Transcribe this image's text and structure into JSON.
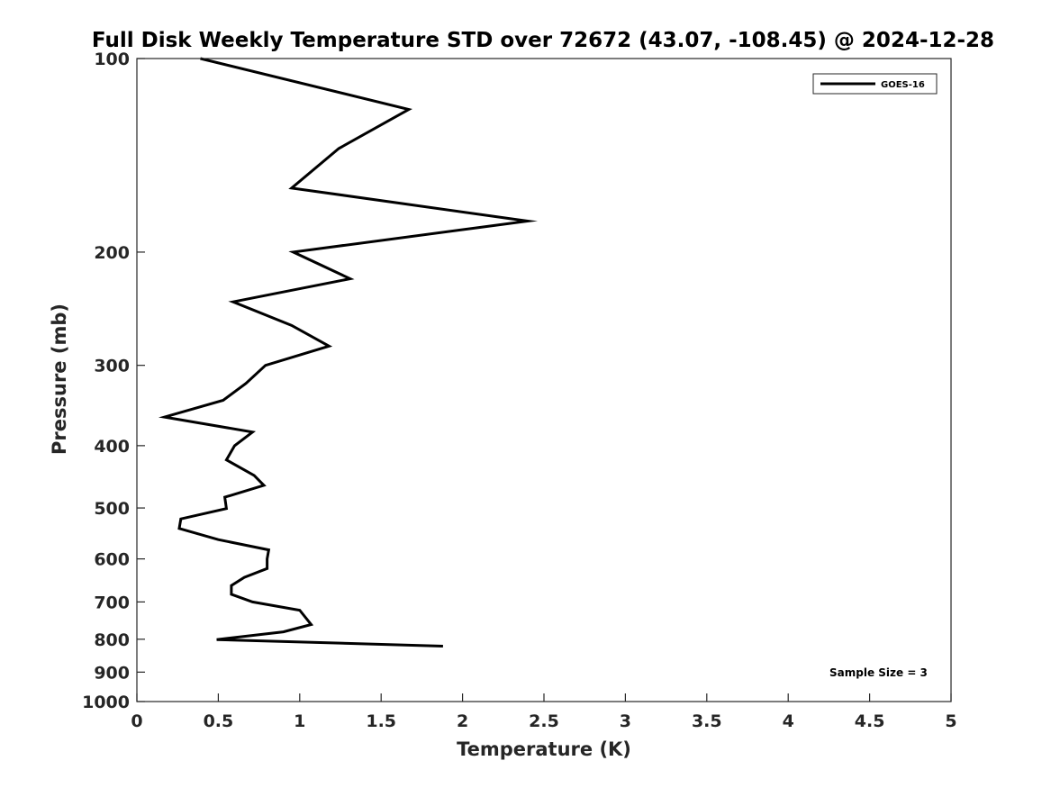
{
  "chart_data": {
    "type": "line",
    "title": "Full Disk Weekly Temperature STD over 72672 (43.07, -108.45) @ 2024-12-28",
    "xlabel": "Temperature (K)",
    "ylabel": "Pressure (mb)",
    "xlim": [
      0,
      5
    ],
    "ylim": [
      100,
      1000
    ],
    "yscale": "log",
    "y_reversed": true,
    "grid": false,
    "x_ticks": [
      0,
      0.5,
      1,
      1.5,
      2,
      2.5,
      3,
      3.5,
      4,
      4.5,
      5
    ],
    "x_tick_labels": [
      "0",
      "0.5",
      "1",
      "1.5",
      "2",
      "2.5",
      "3",
      "3.5",
      "4",
      "4.5",
      "5"
    ],
    "y_ticks": [
      100,
      200,
      300,
      400,
      500,
      600,
      700,
      800,
      900,
      1000
    ],
    "y_tick_labels": [
      "100",
      "200",
      "300",
      "400",
      "500",
      "600",
      "700",
      "800",
      "900",
      "1000"
    ],
    "legend_position": "top-right",
    "series": [
      {
        "name": "GOES-16",
        "color": "#000000",
        "points": [
          {
            "x": 0.39,
            "y": 100
          },
          {
            "x": 1.67,
            "y": 120
          },
          {
            "x": 1.24,
            "y": 138
          },
          {
            "x": 0.95,
            "y": 159
          },
          {
            "x": 2.4,
            "y": 179
          },
          {
            "x": 0.96,
            "y": 200
          },
          {
            "x": 1.31,
            "y": 220
          },
          {
            "x": 0.59,
            "y": 239
          },
          {
            "x": 0.95,
            "y": 260
          },
          {
            "x": 1.18,
            "y": 280
          },
          {
            "x": 0.79,
            "y": 300
          },
          {
            "x": 0.67,
            "y": 320
          },
          {
            "x": 0.53,
            "y": 340
          },
          {
            "x": 0.17,
            "y": 361
          },
          {
            "x": 0.71,
            "y": 381
          },
          {
            "x": 0.6,
            "y": 400
          },
          {
            "x": 0.55,
            "y": 421
          },
          {
            "x": 0.72,
            "y": 445
          },
          {
            "x": 0.78,
            "y": 461
          },
          {
            "x": 0.54,
            "y": 481
          },
          {
            "x": 0.55,
            "y": 501
          },
          {
            "x": 0.27,
            "y": 520
          },
          {
            "x": 0.26,
            "y": 538
          },
          {
            "x": 0.5,
            "y": 560
          },
          {
            "x": 0.81,
            "y": 581
          },
          {
            "x": 0.8,
            "y": 600
          },
          {
            "x": 0.8,
            "y": 621
          },
          {
            "x": 0.66,
            "y": 641
          },
          {
            "x": 0.58,
            "y": 660
          },
          {
            "x": 0.58,
            "y": 681
          },
          {
            "x": 0.71,
            "y": 700
          },
          {
            "x": 1.0,
            "y": 721
          },
          {
            "x": 1.07,
            "y": 759
          },
          {
            "x": 0.9,
            "y": 779
          },
          {
            "x": 0.49,
            "y": 801
          },
          {
            "x": 1.88,
            "y": 820
          }
        ]
      }
    ],
    "annotations": [
      "Sample Size = 3"
    ]
  }
}
